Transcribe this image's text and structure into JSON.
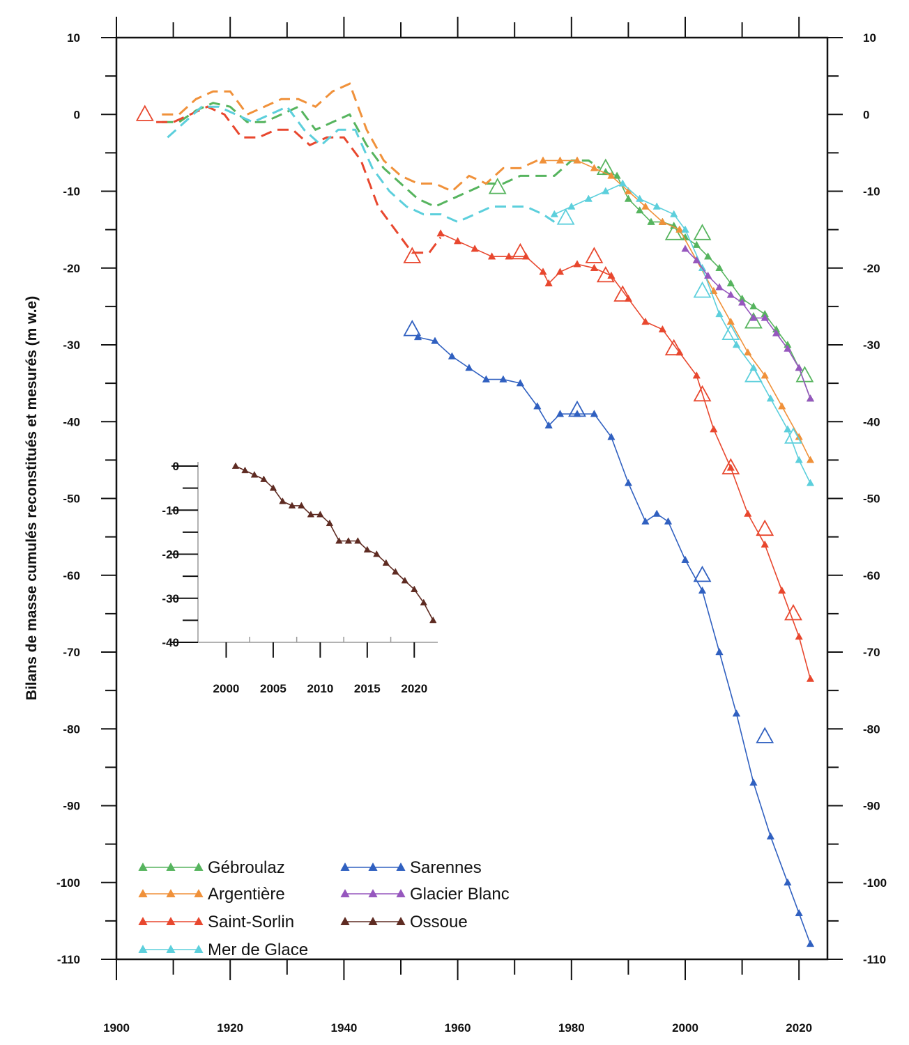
{
  "chart_data": {
    "type": "line",
    "title": "",
    "xlabel": "",
    "ylabel": "Bilans de masse cumulés reconstitués et mesurés (m w.e)",
    "xlim": [
      1900,
      2025
    ],
    "ylim": [
      -110,
      10
    ],
    "x_ticks": [
      "1900",
      "1920",
      "1940",
      "1960",
      "1980",
      "2000",
      "2020"
    ],
    "y_ticks": [
      "10",
      "0",
      "-10",
      "-20",
      "-30",
      "-40",
      "-50",
      "-60",
      "-70",
      "-80",
      "-90",
      "-100",
      "-110"
    ],
    "y_ticks_right": [
      "10",
      "0",
      "-10",
      "-20",
      "-30",
      "-40",
      "-50",
      "-60",
      "-70",
      "-80",
      "-90",
      "-100",
      "-110"
    ],
    "grid": false,
    "legend_position": "bottom-left",
    "series": [
      {
        "name": "Gébroulaz",
        "color": "#56b45e",
        "reconstructed": {
          "x": [
            1908,
            1911,
            1914,
            1917,
            1920,
            1923,
            1926,
            1929,
            1932,
            1935,
            1938,
            1941,
            1944,
            1947,
            1950,
            1953,
            1956,
            1959,
            1962,
            1965,
            1968,
            1971,
            1974,
            1977,
            1980,
            1983,
            1985
          ],
          "y": [
            -1,
            -1,
            0.5,
            1.5,
            1,
            -1,
            -1,
            0,
            1,
            -2,
            -1,
            0,
            -4,
            -7,
            -9,
            -11,
            -12,
            -11,
            -10,
            -9,
            -9,
            -8,
            -8,
            -8,
            -6,
            -6,
            -7
          ]
        },
        "measured": {
          "x": [
            1986,
            1988,
            1990,
            1992,
            1994,
            1996,
            1998,
            2000,
            2002,
            2004,
            2006,
            2008,
            2010,
            2012,
            2014,
            2016,
            2018,
            2020,
            2022
          ],
          "y": [
            -7.5,
            -8,
            -11,
            -12.5,
            -14,
            -14,
            -14.5,
            -16,
            -17,
            -18.5,
            -20,
            -22,
            -24,
            -25,
            -26,
            -28,
            -30,
            -33,
            -37
          ]
        },
        "geodetic": {
          "x": [
            1967,
            1986,
            1998,
            2003,
            2012,
            2021
          ],
          "y": [
            -9.5,
            -7,
            -15.5,
            -15.5,
            -27,
            -34
          ]
        }
      },
      {
        "name": "Argentière",
        "color": "#f0913a",
        "reconstructed": {
          "x": [
            1908,
            1911,
            1914,
            1917,
            1920,
            1923,
            1926,
            1929,
            1932,
            1935,
            1938,
            1941,
            1944,
            1947,
            1950,
            1953,
            1956,
            1959,
            1962,
            1965,
            1968,
            1971,
            1974
          ],
          "y": [
            0,
            0,
            2,
            3,
            3,
            0,
            1,
            2,
            2,
            1,
            3,
            4,
            -2,
            -6,
            -8,
            -9,
            -9,
            -10,
            -8,
            -9,
            -7,
            -7,
            -6
          ]
        },
        "measured": {
          "x": [
            1975,
            1978,
            1981,
            1984,
            1987,
            1990,
            1993,
            1996,
            1999,
            2002,
            2005,
            2008,
            2011,
            2014,
            2017,
            2020,
            2022
          ],
          "y": [
            -6,
            -6,
            -6,
            -7,
            -8,
            -10,
            -12,
            -14,
            -15,
            -19,
            -23,
            -27,
            -31,
            -34,
            -38,
            -42,
            -45
          ]
        },
        "geodetic": {
          "x": [],
          "y": []
        }
      },
      {
        "name": "Saint-Sorlin",
        "color": "#e8472e",
        "reconstructed": {
          "x": [
            1907,
            1910,
            1913,
            1916,
            1919,
            1922,
            1925,
            1928,
            1931,
            1934,
            1937,
            1940,
            1943,
            1946,
            1949,
            1952,
            1955,
            1957
          ],
          "y": [
            -1,
            -1,
            0,
            1,
            0,
            -3,
            -3,
            -2,
            -2,
            -4,
            -3,
            -3,
            -6,
            -12,
            -15,
            -18,
            -18,
            -16
          ]
        },
        "measured": {
          "x": [
            1957,
            1960,
            1963,
            1966,
            1969,
            1972,
            1975,
            1976,
            1978,
            1981,
            1984,
            1987,
            1990,
            1993,
            1996,
            1999,
            2002,
            2005,
            2008,
            2011,
            2014,
            2017,
            2020,
            2022
          ],
          "y": [
            -15.5,
            -16.5,
            -17.5,
            -18.5,
            -18.5,
            -18.5,
            -20.5,
            -22,
            -20.5,
            -19.5,
            -20,
            -21,
            -24,
            -27,
            -28,
            -31,
            -34,
            -41,
            -46,
            -52,
            -56,
            -62,
            -68,
            -73.5
          ]
        },
        "geodetic": {
          "x": [
            1905,
            1952,
            1971,
            1984,
            1986,
            1989,
            1998,
            2003,
            2008,
            2014,
            2019
          ],
          "y": [
            0,
            -18.5,
            -18,
            -18.5,
            -21,
            -23.5,
            -30.5,
            -36.5,
            -46,
            -54,
            -65
          ]
        }
      },
      {
        "name": "Mer de Glace",
        "color": "#5ccfdc",
        "reconstructed": {
          "x": [
            1909,
            1912,
            1915,
            1918,
            1921,
            1924,
            1927,
            1930,
            1933,
            1936,
            1939,
            1942,
            1945,
            1948,
            1951,
            1954,
            1957,
            1960,
            1963,
            1966,
            1969,
            1972,
            1975,
            1977
          ],
          "y": [
            -3,
            -1,
            1,
            1,
            0,
            -1,
            0,
            1,
            -2,
            -4,
            -2,
            -2,
            -7,
            -10,
            -12,
            -13,
            -13,
            -14,
            -13,
            -12,
            -12,
            -12,
            -13,
            -14
          ]
        },
        "measured": {
          "x": [
            1977,
            1980,
            1983,
            1986,
            1989,
            1992,
            1995,
            1998,
            2000,
            2003,
            2006,
            2009,
            2012,
            2015,
            2018,
            2020,
            2022
          ],
          "y": [
            -13,
            -12,
            -11,
            -10,
            -9,
            -11,
            -12,
            -13,
            -15,
            -20,
            -26,
            -30,
            -33,
            -37,
            -41,
            -45,
            -48
          ]
        },
        "geodetic": {
          "x": [
            1979,
            2003,
            2008,
            2012,
            2019
          ],
          "y": [
            -13.5,
            -23,
            -28.5,
            -34,
            -42
          ]
        }
      },
      {
        "name": "Sarennes",
        "color": "#3060c0",
        "reconstructed": {
          "x": [],
          "y": []
        },
        "measured": {
          "x": [
            1953,
            1956,
            1959,
            1962,
            1965,
            1968,
            1971,
            1974,
            1976,
            1978,
            1981,
            1984,
            1987,
            1990,
            1993,
            1995,
            1997,
            2000,
            2003,
            2006,
            2009,
            2012,
            2015,
            2018,
            2020,
            2022
          ],
          "y": [
            -29,
            -29.5,
            -31.5,
            -33,
            -34.5,
            -34.5,
            -35,
            -38,
            -40.5,
            -39,
            -39,
            -39,
            -42,
            -48,
            -53,
            -52,
            -53,
            -58,
            -62,
            -70,
            -78,
            -87,
            -94,
            -100,
            -104,
            -108
          ]
        },
        "geodetic": {
          "x": [
            1952,
            1981,
            2003,
            2014
          ],
          "y": [
            -28,
            -38.5,
            -60,
            -81
          ]
        }
      },
      {
        "name": "Glacier Blanc",
        "color": "#9657be",
        "reconstructed": {
          "x": [],
          "y": []
        },
        "measured": {
          "x": [
            2000,
            2002,
            2004,
            2006,
            2008,
            2010,
            2012,
            2014,
            2016,
            2018,
            2020,
            2022
          ],
          "y": [
            -17.5,
            -19,
            -21,
            -22.5,
            -23.5,
            -24.5,
            -26.5,
            -26.5,
            -28.5,
            -30.5,
            -33,
            -37
          ]
        },
        "geodetic": {
          "x": [],
          "y": []
        }
      }
    ],
    "inset": {
      "series_name": "Ossoue",
      "color": "#5e2b22",
      "xlim": [
        1997,
        2022.5
      ],
      "ylim": [
        -40,
        0
      ],
      "x_ticks": [
        "2000",
        "2005",
        "2010",
        "2015",
        "2020"
      ],
      "y_ticks": [
        "0",
        "-10",
        "-20",
        "-30",
        "-40"
      ],
      "x": [
        2001,
        2002,
        2003,
        2004,
        2005,
        2006,
        2007,
        2008,
        2009,
        2010,
        2011,
        2012,
        2013,
        2014,
        2015,
        2016,
        2017,
        2018,
        2019,
        2020,
        2021,
        2022
      ],
      "y": [
        0,
        -1,
        -2,
        -3,
        -5,
        -8,
        -9,
        -9,
        -11,
        -11,
        -13,
        -17,
        -17,
        -17,
        -19,
        -20,
        -22,
        -24,
        -26,
        -28,
        -31,
        -35
      ]
    },
    "legend": [
      {
        "label": "Gébroulaz",
        "color": "#56b45e"
      },
      {
        "label": "Argentière",
        "color": "#f0913a"
      },
      {
        "label": "Saint-Sorlin",
        "color": "#e8472e"
      },
      {
        "label": "Mer de Glace",
        "color": "#5ccfdc"
      },
      {
        "label": "Sarennes",
        "color": "#3060c0"
      },
      {
        "label": "Glacier Blanc",
        "color": "#9657be"
      },
      {
        "label": "Ossoue",
        "color": "#5e2b22"
      }
    ]
  }
}
